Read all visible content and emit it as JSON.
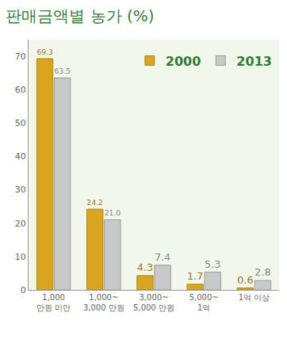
{
  "chart_data": {
    "type": "bar",
    "title": "판매금액별 농가 (%)",
    "categories": [
      "1,000\n만원 미만",
      "1,000~\n3,000 만원",
      "3,000~\n5,000 만원",
      "5,000~\n1억",
      "1억 이상"
    ],
    "series": [
      {
        "name": "2000",
        "color": "#d9a521",
        "values": [
          69.3,
          24.2,
          4.3,
          1.7,
          0.6
        ]
      },
      {
        "name": "2013",
        "color": "#c9c9c9",
        "values": [
          63.5,
          21.0,
          7.4,
          5.3,
          2.8
        ],
        "value_labels": [
          "63.5",
          "21.0",
          "7.4",
          "5.3",
          "2.8"
        ]
      }
    ],
    "ylim": [
      0,
      75
    ],
    "yticks": [
      0,
      10,
      20,
      30,
      40,
      50,
      60,
      70
    ],
    "grid": false,
    "legend": "top right",
    "data_labels": true
  }
}
